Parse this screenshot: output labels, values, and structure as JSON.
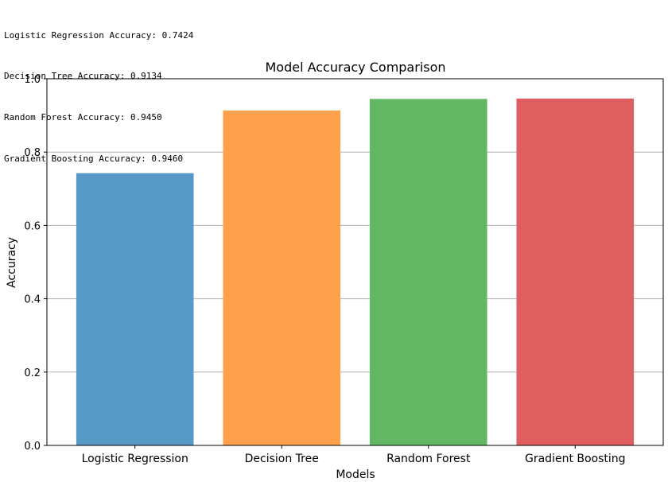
{
  "output_lines": [
    "Logistic Regression Accuracy: 0.7424",
    "Decision Tree Accuracy: 0.9134",
    "Random Forest Accuracy: 0.9450",
    "Gradient Boosting Accuracy: 0.9460"
  ],
  "chart_data": {
    "type": "bar",
    "title": "Model Accuracy Comparison",
    "xlabel": "Models",
    "ylabel": "Accuracy",
    "categories": [
      "Logistic Regression",
      "Decision Tree",
      "Random Forest",
      "Gradient Boosting"
    ],
    "values": [
      0.7424,
      0.9134,
      0.945,
      0.946
    ],
    "colors": [
      "#5799c7",
      "#ffa04d",
      "#62b862",
      "#df5e5f"
    ],
    "ylim": [
      0,
      1.0
    ],
    "yticks": [
      "0.0",
      "0.2",
      "0.4",
      "0.6",
      "0.8",
      "1.0"
    ],
    "grid": "y"
  }
}
